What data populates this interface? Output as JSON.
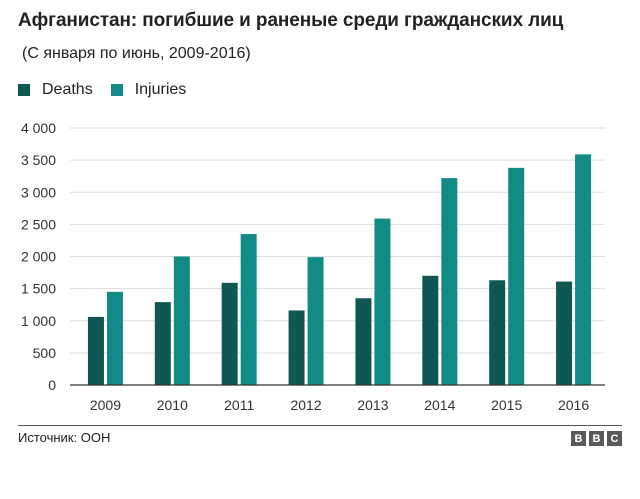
{
  "title": "Афганистан: погибшие и раненые среди гражданских лиц",
  "subtitle": "(С января по июнь, 2009-2016)",
  "source": "Источник: ООН",
  "logo": [
    "B",
    "B",
    "C"
  ],
  "colors": {
    "deaths": "#0e5752",
    "injuries": "#128a85",
    "axis": "#333333",
    "grid": "#dddddd"
  },
  "chart_data": {
    "type": "bar",
    "categories": [
      "2009",
      "2010",
      "2011",
      "2012",
      "2013",
      "2014",
      "2015",
      "2016"
    ],
    "series": [
      {
        "name": "Deaths",
        "values": [
          1060,
          1290,
          1590,
          1160,
          1350,
          1700,
          1630,
          1610
        ]
      },
      {
        "name": "Injuries",
        "values": [
          1450,
          2000,
          2350,
          1990,
          2590,
          3220,
          3380,
          3590
        ]
      }
    ],
    "yticks": [
      "0",
      "500",
      "1 000",
      "1 500",
      "2 000",
      "2 500",
      "3 000",
      "3 500",
      "4 000"
    ],
    "ylim": [
      0,
      4000
    ],
    "grid": true,
    "legend": "top-left"
  }
}
